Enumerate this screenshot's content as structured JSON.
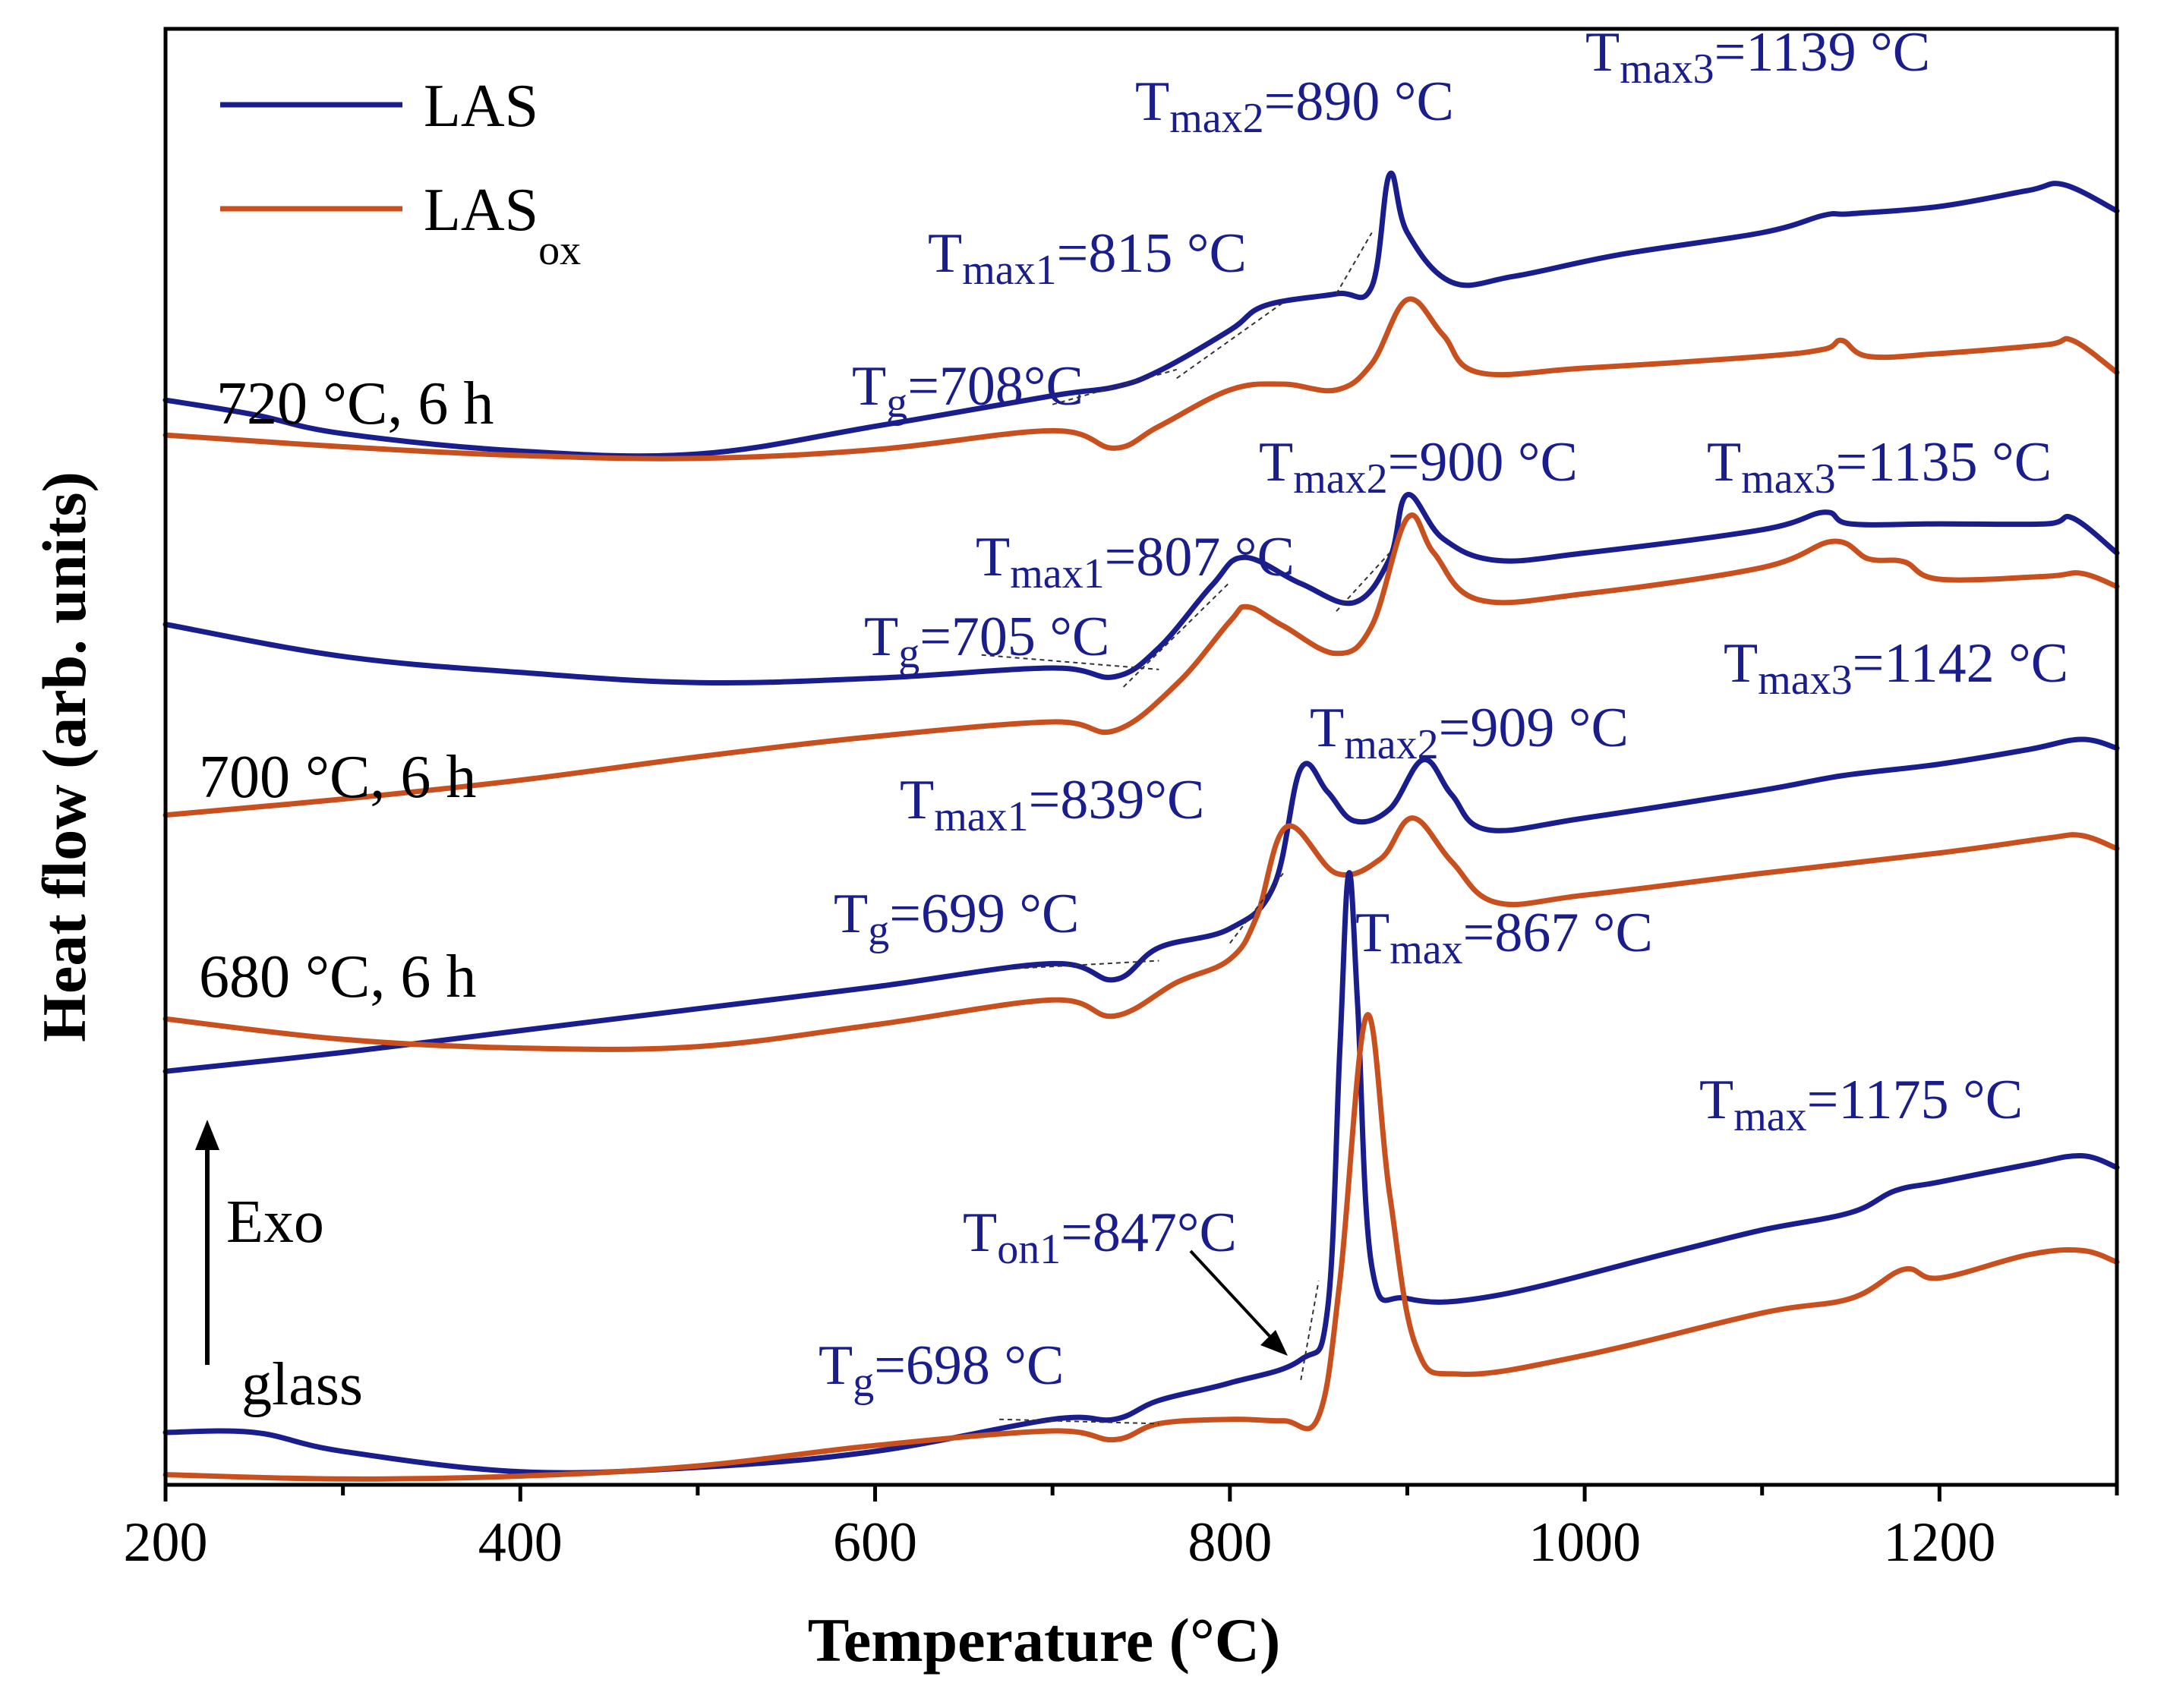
{
  "chart_data": {
    "type": "line",
    "title": "",
    "xlabel": "Temperature (°C)",
    "ylabel": "Heat flow (arb. units)",
    "xlim": [
      200,
      1300
    ],
    "xticks": [
      200,
      400,
      600,
      800,
      1000,
      1200
    ],
    "xtick_labels": [
      "200",
      "400",
      "600",
      "800",
      "1000",
      "1200"
    ],
    "ylim": [
      0,
      1000
    ],
    "y_ticks_shown": false,
    "grid": false,
    "colors": {
      "LAS": "#1a1d8c",
      "LAS_ox": "#c8501e"
    },
    "legend": {
      "position": "top-left",
      "entries": [
        {
          "key": "LAS",
          "label": "LAS",
          "subscript": ""
        },
        {
          "key": "LAS_ox",
          "label": "LAS",
          "subscript": "ox"
        }
      ]
    },
    "exo_label": "Exo",
    "conditions": [
      {
        "id": "720",
        "label": "720 °C, 6 h"
      },
      {
        "id": "700",
        "label": "700 °C, 6 h"
      },
      {
        "id": "680",
        "label": "680 °C, 6 h"
      },
      {
        "id": "glass",
        "label": "glass"
      }
    ],
    "annotations": [
      {
        "id": "a720-tmax2",
        "main": "T",
        "sub": "max2",
        "rest": "=890 °C"
      },
      {
        "id": "a720-tmax3",
        "main": "T",
        "sub": "max3",
        "rest": "=1139 °C"
      },
      {
        "id": "a720-tmax1",
        "main": "T",
        "sub": "max1",
        "rest": "=815 °C"
      },
      {
        "id": "a720-tg",
        "main": "T",
        "sub": "g",
        "rest": "=708°C"
      },
      {
        "id": "a700-tmax2",
        "main": "T",
        "sub": "max2",
        "rest": "=900 °C"
      },
      {
        "id": "a700-tmax3",
        "main": "T",
        "sub": "max3",
        "rest": "=1135 °C"
      },
      {
        "id": "a700-tmax1",
        "main": "T",
        "sub": "max1",
        "rest": "=807 °C"
      },
      {
        "id": "a700-tg",
        "main": "T",
        "sub": "g",
        "rest": "=705 °C"
      },
      {
        "id": "a680-tmax3",
        "main": "T",
        "sub": "max3",
        "rest": "=1142 °C"
      },
      {
        "id": "a680-tmax2",
        "main": "T",
        "sub": "max2",
        "rest": "=909 °C"
      },
      {
        "id": "a680-tmax1",
        "main": "T",
        "sub": "max1",
        "rest": "=839°C"
      },
      {
        "id": "a680-tg",
        "main": "T",
        "sub": "g",
        "rest": "=699 °C"
      },
      {
        "id": "aglass-tmax",
        "main": "T",
        "sub": "max",
        "rest": "=867 °C"
      },
      {
        "id": "aglass-tmax1175",
        "main": "T",
        "sub": "max",
        "rest": "=1175 °C"
      },
      {
        "id": "aglass-ton1",
        "main": "T",
        "sub": "on1",
        "rest": "=847°C"
      },
      {
        "id": "aglass-tg",
        "main": "T",
        "sub": "g",
        "rest": "=698 °C"
      }
    ],
    "series": [
      {
        "name": "LAS 720 °C, 6 h",
        "family": "LAS",
        "points": [
          [
            200,
            745
          ],
          [
            250,
            735
          ],
          [
            300,
            722
          ],
          [
            400,
            710
          ],
          [
            500,
            708
          ],
          [
            600,
            727
          ],
          [
            700,
            748
          ],
          [
            735,
            754
          ],
          [
            760,
            765
          ],
          [
            800,
            793
          ],
          [
            820,
            810
          ],
          [
            860,
            818
          ],
          [
            880,
            823
          ],
          [
            890,
            900
          ],
          [
            900,
            860
          ],
          [
            925,
            826
          ],
          [
            960,
            830
          ],
          [
            1020,
            845
          ],
          [
            1100,
            860
          ],
          [
            1135,
            872
          ],
          [
            1150,
            873
          ],
          [
            1200,
            878
          ],
          [
            1250,
            889
          ],
          [
            1270,
            893
          ],
          [
            1300,
            875
          ]
        ]
      },
      {
        "name": "LAS_ox 720 °C, 6 h",
        "family": "LAS_ox",
        "points": [
          [
            200,
            721
          ],
          [
            300,
            713
          ],
          [
            400,
            707
          ],
          [
            500,
            705
          ],
          [
            600,
            711
          ],
          [
            700,
            724
          ],
          [
            735,
            712
          ],
          [
            760,
            727
          ],
          [
            800,
            752
          ],
          [
            830,
            756
          ],
          [
            860,
            752
          ],
          [
            880,
            770
          ],
          [
            900,
            814
          ],
          [
            920,
            790
          ],
          [
            940,
            764
          ],
          [
            1000,
            767
          ],
          [
            1100,
            775
          ],
          [
            1135,
            780
          ],
          [
            1145,
            786
          ],
          [
            1160,
            775
          ],
          [
            1200,
            777
          ],
          [
            1260,
            783
          ],
          [
            1275,
            786
          ],
          [
            1300,
            764
          ]
        ]
      },
      {
        "name": "LAS 700 °C, 6 h",
        "family": "LAS",
        "points": [
          [
            200,
            591
          ],
          [
            300,
            569
          ],
          [
            400,
            558
          ],
          [
            500,
            551
          ],
          [
            600,
            554
          ],
          [
            700,
            561
          ],
          [
            735,
            555
          ],
          [
            760,
            575
          ],
          [
            790,
            618
          ],
          [
            808,
            637
          ],
          [
            840,
            619
          ],
          [
            870,
            606
          ],
          [
            890,
            636
          ],
          [
            900,
            680
          ],
          [
            920,
            650
          ],
          [
            950,
            635
          ],
          [
            1000,
            640
          ],
          [
            1100,
            656
          ],
          [
            1135,
            668
          ],
          [
            1150,
            660
          ],
          [
            1200,
            660
          ],
          [
            1260,
            660
          ],
          [
            1275,
            664
          ],
          [
            1300,
            640
          ]
        ]
      },
      {
        "name": "LAS_ox 700 °C, 6 h",
        "family": "LAS_ox",
        "points": [
          [
            200,
            460
          ],
          [
            300,
            471
          ],
          [
            400,
            484
          ],
          [
            500,
            500
          ],
          [
            600,
            514
          ],
          [
            700,
            524
          ],
          [
            735,
            518
          ],
          [
            770,
            550
          ],
          [
            800,
            593
          ],
          [
            810,
            603
          ],
          [
            830,
            590
          ],
          [
            860,
            571
          ],
          [
            880,
            590
          ],
          [
            900,
            664
          ],
          [
            915,
            640
          ],
          [
            940,
            608
          ],
          [
            1000,
            612
          ],
          [
            1100,
            630
          ],
          [
            1140,
            648
          ],
          [
            1160,
            636
          ],
          [
            1180,
            634
          ],
          [
            1200,
            622
          ],
          [
            1260,
            624
          ],
          [
            1280,
            626
          ],
          [
            1300,
            617
          ]
        ]
      },
      {
        "name": "LAS 680 °C, 6 h",
        "family": "LAS",
        "points": [
          [
            200,
            284
          ],
          [
            300,
            297
          ],
          [
            400,
            312
          ],
          [
            500,
            327
          ],
          [
            600,
            342
          ],
          [
            700,
            358
          ],
          [
            735,
            347
          ],
          [
            760,
            369
          ],
          [
            800,
            382
          ],
          [
            825,
            412
          ],
          [
            840,
            492
          ],
          [
            855,
            476
          ],
          [
            870,
            456
          ],
          [
            890,
            464
          ],
          [
            909,
            498
          ],
          [
            925,
            474
          ],
          [
            945,
            450
          ],
          [
            1000,
            458
          ],
          [
            1100,
            477
          ],
          [
            1145,
            487
          ],
          [
            1200,
            495
          ],
          [
            1250,
            505
          ],
          [
            1280,
            512
          ],
          [
            1300,
            506
          ]
        ]
      },
      {
        "name": "LAS_ox 680 °C, 6 h",
        "family": "LAS_ox",
        "points": [
          [
            200,
            320
          ],
          [
            300,
            306
          ],
          [
            400,
            300
          ],
          [
            500,
            301
          ],
          [
            600,
            316
          ],
          [
            700,
            333
          ],
          [
            735,
            322
          ],
          [
            770,
            345
          ],
          [
            800,
            361
          ],
          [
            815,
            390
          ],
          [
            832,
            452
          ],
          [
            860,
            420
          ],
          [
            885,
            430
          ],
          [
            903,
            458
          ],
          [
            925,
            428
          ],
          [
            950,
            400
          ],
          [
            1000,
            405
          ],
          [
            1100,
            420
          ],
          [
            1200,
            434
          ],
          [
            1260,
            444
          ],
          [
            1280,
            446
          ],
          [
            1300,
            437
          ]
        ]
      },
      {
        "name": "LAS glass",
        "family": "LAS",
        "points": [
          [
            200,
            36
          ],
          [
            250,
            36
          ],
          [
            300,
            23
          ],
          [
            400,
            9
          ],
          [
            500,
            12
          ],
          [
            600,
            23
          ],
          [
            700,
            45
          ],
          [
            735,
            45
          ],
          [
            760,
            58
          ],
          [
            800,
            70
          ],
          [
            840,
            86
          ],
          [
            855,
            120
          ],
          [
            862,
            300
          ],
          [
            867,
            420
          ],
          [
            872,
            330
          ],
          [
            880,
            150
          ],
          [
            900,
            128
          ],
          [
            950,
            130
          ],
          [
            1050,
            160
          ],
          [
            1100,
            175
          ],
          [
            1150,
            187
          ],
          [
            1175,
            202
          ],
          [
            1200,
            208
          ],
          [
            1250,
            220
          ],
          [
            1280,
            226
          ],
          [
            1300,
            218
          ]
        ]
      },
      {
        "name": "LAS_ox glass",
        "family": "LAS_ox",
        "points": [
          [
            200,
            7
          ],
          [
            300,
            4
          ],
          [
            400,
            6
          ],
          [
            500,
            13
          ],
          [
            600,
            27
          ],
          [
            700,
            37
          ],
          [
            735,
            31
          ],
          [
            760,
            42
          ],
          [
            800,
            45
          ],
          [
            830,
            44
          ],
          [
            850,
            47
          ],
          [
            862,
            140
          ],
          [
            877,
            322
          ],
          [
            890,
            200
          ],
          [
            905,
            95
          ],
          [
            930,
            76
          ],
          [
            1000,
            89
          ],
          [
            1100,
            118
          ],
          [
            1150,
            128
          ],
          [
            1180,
            148
          ],
          [
            1200,
            142
          ],
          [
            1250,
            158
          ],
          [
            1280,
            161
          ],
          [
            1300,
            153
          ]
        ]
      }
    ]
  }
}
